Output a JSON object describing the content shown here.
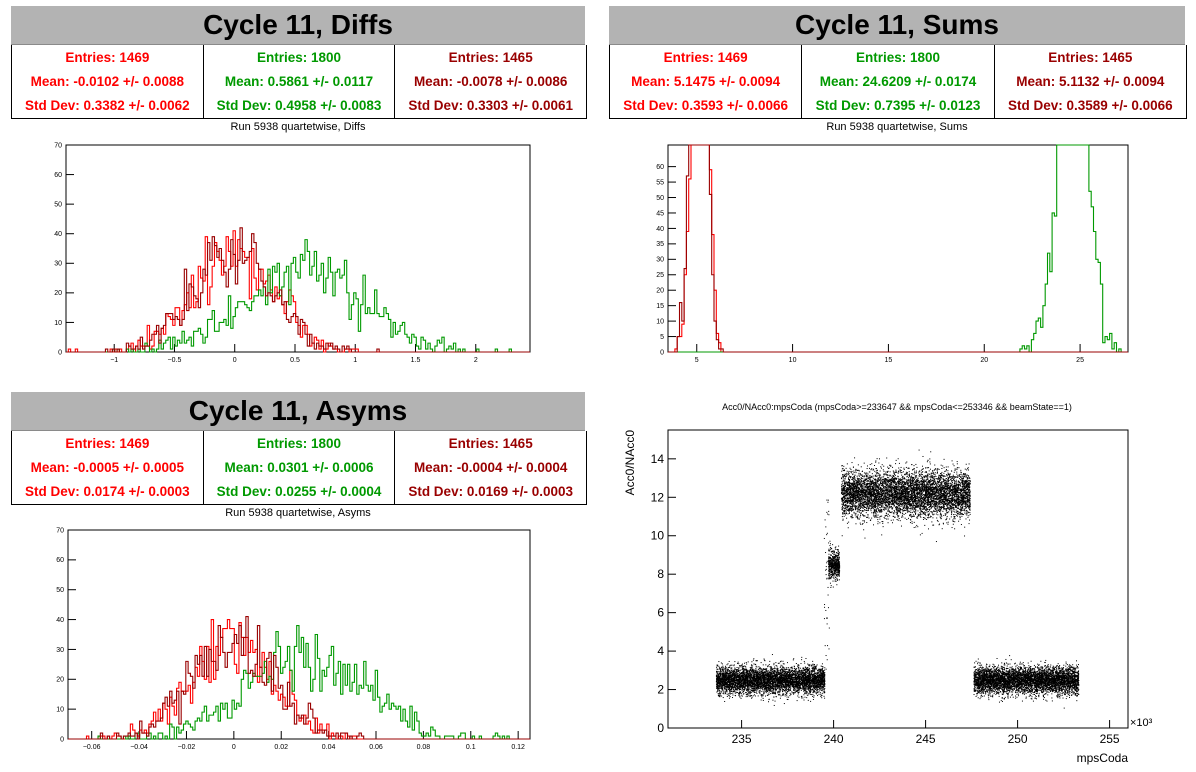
{
  "panels": {
    "diffs": {
      "title": "Cycle 11, Diffs",
      "subtitle": "Run 5938 quartetwise, Diffs",
      "stats": [
        {
          "entries": "Entries: 1469",
          "mean": "Mean: -0.0102 +/- 0.0088",
          "std": "Std Dev: 0.3382 +/- 0.0062",
          "color": "#ff0000"
        },
        {
          "entries": "Entries: 1800",
          "mean": "Mean: 0.5861 +/- 0.0117",
          "std": "Std Dev: 0.4958 +/- 0.0083",
          "color": "#009900"
        },
        {
          "entries": "Entries: 1465",
          "mean": "Mean: -0.0078 +/- 0.0086",
          "std": "Std Dev: 0.3303 +/- 0.0061",
          "color": "#990000"
        }
      ]
    },
    "sums": {
      "title": "Cycle 11, Sums",
      "subtitle": "Run 5938 quartetwise, Sums",
      "stats": [
        {
          "entries": "Entries: 1469",
          "mean": "Mean: 5.1475 +/- 0.0094",
          "std": "Std Dev: 0.3593 +/- 0.0066",
          "color": "#ff0000"
        },
        {
          "entries": "Entries: 1800",
          "mean": "Mean: 24.6209 +/- 0.0174",
          "std": "Std Dev: 0.7395 +/- 0.0123",
          "color": "#009900"
        },
        {
          "entries": "Entries: 1465",
          "mean": "Mean: 5.1132 +/- 0.0094",
          "std": "Std Dev: 0.3589 +/- 0.0066",
          "color": "#990000"
        }
      ]
    },
    "asyms": {
      "title": "Cycle 11, Asyms",
      "subtitle": "Run 5938 quartetwise, Asyms",
      "stats": [
        {
          "entries": "Entries: 1469",
          "mean": "Mean: -0.0005 +/- 0.0005",
          "std": "Std Dev: 0.0174 +/- 0.0003",
          "color": "#ff0000"
        },
        {
          "entries": "Entries: 1800",
          "mean": "Mean: 0.0301 +/- 0.0006",
          "std": "Std Dev: 0.0255 +/- 0.0004",
          "color": "#009900"
        },
        {
          "entries": "Entries: 1465",
          "mean": "Mean: -0.0004 +/- 0.0004",
          "std": "Std Dev: 0.0169 +/- 0.0003",
          "color": "#990000"
        }
      ]
    },
    "scatter": {
      "subtitle": "Acc0/NAcc0:mpsCoda (mpsCoda>=233647 && mpsCoda<=253346 && beamState==1)"
    }
  },
  "chart_data": [
    {
      "id": "diffs",
      "type": "histogram",
      "title": "Run 5938 quartetwise, Diffs",
      "xlim": [
        -1.4,
        2.45
      ],
      "ylim": [
        0,
        70
      ],
      "xticks": [
        -1,
        -0.5,
        0,
        0.5,
        1,
        1.5,
        2
      ],
      "xtick_labels": [
        "−1",
        "−0.5",
        "0",
        "0.5",
        "1",
        "1.5",
        "2"
      ],
      "yticks": [
        0,
        10,
        20,
        30,
        40,
        50,
        60,
        70
      ],
      "series": [
        {
          "color": "#ff0000",
          "mean": -0.0102,
          "std": 0.3382,
          "entries": 1469
        },
        {
          "color": "#009900",
          "mean": 0.5861,
          "std": 0.4958,
          "entries": 1800
        },
        {
          "color": "#990000",
          "mean": -0.0078,
          "std": 0.3303,
          "entries": 1465
        }
      ]
    },
    {
      "id": "sums",
      "type": "histogram",
      "title": "Run 5938 quartetwise, Sums",
      "xlim": [
        3.5,
        27.5
      ],
      "ylim": [
        0,
        67
      ],
      "xticks": [
        5,
        10,
        15,
        20,
        25
      ],
      "xtick_labels": [
        "5",
        "10",
        "15",
        "20",
        "25"
      ],
      "yticks": [
        0,
        5,
        10,
        15,
        20,
        25,
        30,
        35,
        40,
        45,
        50,
        55,
        60
      ],
      "series": [
        {
          "color": "#ff0000",
          "mean": 5.1475,
          "std": 0.3593,
          "entries": 1469
        },
        {
          "color": "#009900",
          "mean": 24.6209,
          "std": 0.7395,
          "entries": 1800
        },
        {
          "color": "#990000",
          "mean": 5.1132,
          "std": 0.3589,
          "entries": 1465
        }
      ]
    },
    {
      "id": "asyms",
      "type": "histogram",
      "title": "Run 5938 quartetwise, Asyms",
      "xlim": [
        -0.07,
        0.125
      ],
      "ylim": [
        0,
        70
      ],
      "xticks": [
        -0.06,
        -0.04,
        -0.02,
        0,
        0.02,
        0.04,
        0.06,
        0.08,
        0.1,
        0.12
      ],
      "xtick_labels": [
        "−0.06",
        "−0.04",
        "−0.02",
        "0",
        "0.02",
        "0.04",
        "0.06",
        "0.08",
        "0.1",
        "0.12"
      ],
      "yticks": [
        0,
        10,
        20,
        30,
        40,
        50,
        60,
        70
      ],
      "series": [
        {
          "color": "#ff0000",
          "mean": -0.0005,
          "std": 0.0174,
          "entries": 1469
        },
        {
          "color": "#009900",
          "mean": 0.0301,
          "std": 0.0255,
          "entries": 1800
        },
        {
          "color": "#990000",
          "mean": -0.0004,
          "std": 0.0169,
          "entries": 1465
        }
      ]
    },
    {
      "id": "scatter",
      "type": "scatter",
      "title": "Acc0/NAcc0:mpsCoda (mpsCoda>=233647 && mpsCoda<=253346 && beamState==1)",
      "xlabel": "mpsCoda",
      "ylabel": "Acc0/NAcc0",
      "x_multiplier": "×10³",
      "xlim": [
        231,
        256
      ],
      "ylim": [
        0,
        15.5
      ],
      "xticks": [
        235,
        240,
        245,
        250,
        255
      ],
      "xtick_labels": [
        "235",
        "240",
        "245",
        "250",
        "255"
      ],
      "yticks": [
        0,
        2,
        4,
        6,
        8,
        10,
        12,
        14
      ],
      "ytick_labels": [
        "0",
        "2",
        "4",
        "6",
        "8",
        "10",
        "12",
        "14"
      ],
      "clusters": [
        {
          "x_range": [
            233.6,
            239.5
          ],
          "y_mean": 2.5,
          "y_spread": 0.35
        },
        {
          "x_range": [
            239.7,
            240.3
          ],
          "y_mean": 8.5,
          "y_spread": 0.4
        },
        {
          "x_range": [
            240.4,
            247.4
          ],
          "y_mean": 12.2,
          "y_spread": 0.6
        },
        {
          "x_range": [
            247.6,
            253.3
          ],
          "y_mean": 2.5,
          "y_spread": 0.35
        }
      ],
      "color": "#000000"
    }
  ]
}
